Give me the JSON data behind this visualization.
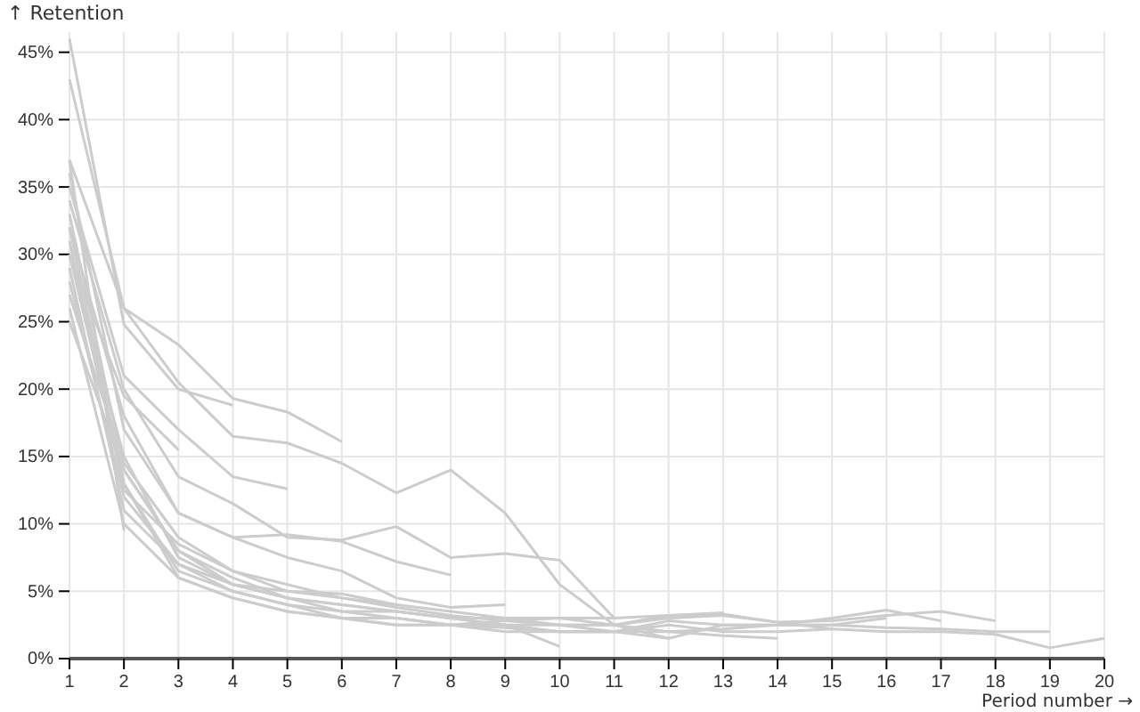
{
  "chart_data": {
    "type": "line",
    "ylabel": "↑ Retention",
    "xlabel": "Period number →",
    "x": [
      1,
      2,
      3,
      4,
      5,
      6,
      7,
      8,
      9,
      10,
      11,
      12,
      13,
      14,
      15,
      16,
      17,
      18,
      19,
      20
    ],
    "xlim": [
      1,
      20
    ],
    "xticks": [
      1,
      2,
      3,
      4,
      5,
      6,
      7,
      8,
      9,
      10,
      11,
      12,
      13,
      14,
      15,
      16,
      17,
      18,
      19,
      20
    ],
    "ylim": [
      0,
      46.5
    ],
    "yticks": [
      {
        "value": 0,
        "label": "0%"
      },
      {
        "value": 5,
        "label": "5%"
      },
      {
        "value": 10,
        "label": "10%"
      },
      {
        "value": 15,
        "label": "15%"
      },
      {
        "value": 20,
        "label": "20%"
      },
      {
        "value": 25,
        "label": "25%"
      },
      {
        "value": 30,
        "label": "30%"
      },
      {
        "value": 35,
        "label": "35%"
      },
      {
        "value": 40,
        "label": "40%"
      },
      {
        "value": 45,
        "label": "45%"
      }
    ],
    "grid": true,
    "marker": "none",
    "line_style": "solid",
    "series": [
      {
        "color": "#cccccc",
        "values": [
          28,
          12,
          7,
          5.5,
          4.5,
          3.5,
          3,
          2.5,
          2.5,
          2,
          2,
          2.5,
          2,
          2,
          2.2,
          2,
          2,
          1.8,
          0.8,
          1.5
        ]
      },
      {
        "color": "#cccccc",
        "values": [
          30,
          13,
          6.5,
          5,
          4,
          3,
          2.5,
          2.5,
          2.3,
          2,
          2,
          2.8,
          2.5,
          2.5,
          2.5,
          2.3,
          2.2,
          2,
          2,
          null
        ]
      },
      {
        "color": "#cccccc",
        "values": [
          33,
          14,
          8,
          6,
          4.5,
          4,
          3.5,
          3,
          2.5,
          2.5,
          2.5,
          3,
          3.2,
          2.7,
          2.8,
          3.2,
          3.5,
          2.8,
          null,
          null
        ]
      },
      {
        "color": "#cccccc",
        "values": [
          26,
          10,
          6,
          4.5,
          3.5,
          3,
          2.5,
          2.5,
          2.8,
          3,
          2.5,
          2,
          2.2,
          2.5,
          3,
          3.6,
          2.8,
          null,
          null,
          null
        ]
      },
      {
        "color": "#cccccc",
        "values": [
          29,
          11,
          7,
          5,
          4,
          3.5,
          3.5,
          3,
          3,
          2.5,
          2,
          1.5,
          2.5,
          2.5,
          2.5,
          3,
          null,
          null,
          null,
          null
        ]
      },
      {
        "color": "#cccccc",
        "values": [
          31,
          12.5,
          8.5,
          6.5,
          5,
          4.5,
          4,
          3.5,
          3,
          3,
          3,
          3.2,
          3.3,
          2.7,
          2.2,
          null,
          null,
          null,
          null,
          null
        ]
      },
      {
        "color": "#cccccc",
        "values": [
          32,
          13,
          6,
          4.5,
          3.5,
          3,
          3,
          2.5,
          2,
          2,
          2,
          2,
          1.7,
          1.5,
          null,
          null,
          null,
          null,
          null,
          null
        ]
      },
      {
        "color": "#cccccc",
        "values": [
          27,
          14.5,
          9,
          6.5,
          5.5,
          4.5,
          3.8,
          3.2,
          2.8,
          2.5,
          2.5,
          3.2,
          3.4,
          null,
          null,
          null,
          null,
          null,
          null,
          null
        ]
      },
      {
        "color": "#cccccc",
        "values": [
          37,
          26,
          20.5,
          16.5,
          16,
          14.5,
          12.3,
          14,
          10.8,
          5.5,
          2.5,
          1.5,
          null,
          null,
          null,
          null,
          null,
          null,
          null,
          null
        ]
      },
      {
        "color": "#cccccc",
        "values": [
          34,
          20,
          13.5,
          11.5,
          9,
          8.8,
          9.8,
          7.5,
          7.8,
          7.3,
          3,
          null,
          null,
          null,
          null,
          null,
          null,
          null,
          null,
          null
        ]
      },
      {
        "color": "#cccccc",
        "values": [
          30,
          15,
          7.5,
          5.5,
          4.5,
          4,
          3.5,
          3,
          2.5,
          0.9,
          null,
          null,
          null,
          null,
          null,
          null,
          null,
          null,
          null,
          null
        ]
      },
      {
        "color": "#cccccc",
        "values": [
          32,
          18,
          10.8,
          9,
          7.5,
          6.5,
          4.5,
          3.8,
          4,
          null,
          null,
          null,
          null,
          null,
          null,
          null,
          null,
          null,
          null,
          null
        ]
      },
      {
        "color": "#cccccc",
        "values": [
          36,
          17,
          10.8,
          9,
          9.2,
          8.7,
          7.2,
          6.2,
          null,
          null,
          null,
          null,
          null,
          null,
          null,
          null,
          null,
          null,
          null,
          null
        ]
      },
      {
        "color": "#cccccc",
        "values": [
          25,
          14,
          8,
          5.5,
          5,
          4.8,
          4,
          null,
          null,
          null,
          null,
          null,
          null,
          null,
          null,
          null,
          null,
          null,
          null,
          null
        ]
      },
      {
        "color": "#cccccc",
        "values": [
          43,
          26,
          23.3,
          19.3,
          18.3,
          16.1,
          null,
          null,
          null,
          null,
          null,
          null,
          null,
          null,
          null,
          null,
          null,
          null,
          null,
          null
        ]
      },
      {
        "color": "#cccccc",
        "values": [
          35,
          21,
          17,
          13.5,
          12.6,
          null,
          null,
          null,
          null,
          null,
          null,
          null,
          null,
          null,
          null,
          null,
          null,
          null,
          null,
          null
        ]
      },
      {
        "color": "#cccccc",
        "values": [
          46,
          24.8,
          20,
          18.8,
          null,
          null,
          null,
          null,
          null,
          null,
          null,
          null,
          null,
          null,
          null,
          null,
          null,
          null,
          null,
          null
        ]
      },
      {
        "color": "#cccccc",
        "values": [
          30,
          19.5,
          15.5,
          null,
          null,
          null,
          null,
          null,
          null,
          null,
          null,
          null,
          null,
          null,
          null,
          null,
          null,
          null,
          null,
          null
        ]
      },
      {
        "color": "#cccccc",
        "values": [
          37,
          9.5,
          null,
          null,
          null,
          null,
          null,
          null,
          null,
          null,
          null,
          null,
          null,
          null,
          null,
          null,
          null,
          null,
          null,
          null
        ]
      }
    ]
  }
}
